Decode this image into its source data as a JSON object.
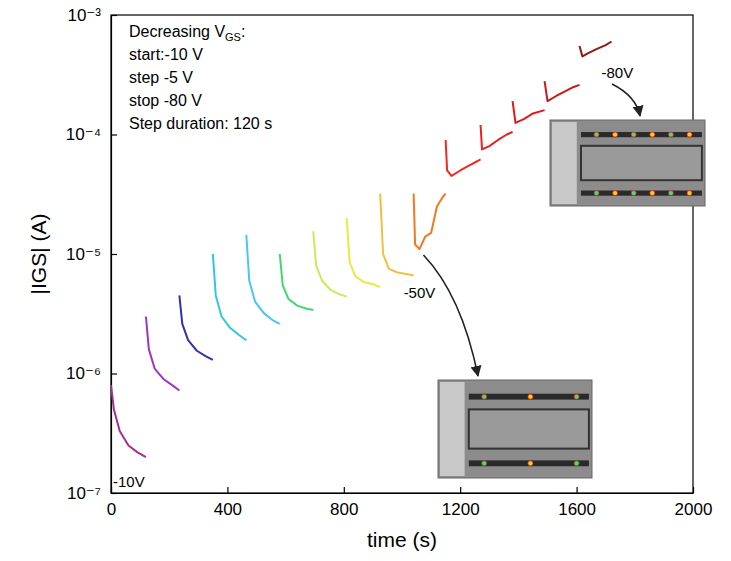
{
  "chart_data": {
    "type": "line",
    "x_label": "time (s)",
    "y_label": "|IGS| (A)",
    "log": "y",
    "grid": false,
    "tick_labels": true,
    "xlim": [
      0,
      2000
    ],
    "xticks": [
      0,
      400,
      800,
      1200,
      1600,
      2000
    ],
    "ylim": [
      1e-07,
      0.001
    ],
    "yticks": [
      {
        "value": 1e-07,
        "label": "10⁻⁷"
      },
      {
        "value": 1e-06,
        "label": "10⁻⁶"
      },
      {
        "value": 1e-05,
        "label": "10⁻⁵"
      },
      {
        "value": 0.0001,
        "label": "10⁻⁴"
      },
      {
        "value": 0.001,
        "label": "10⁻³"
      }
    ],
    "annotations": [
      "Decreasing VGS:",
      "start:-10 V",
      "step -5 V",
      "stop -80 V",
      "Step duration: 120 s"
    ],
    "voltage_labels": [
      "-10V",
      "-50V",
      "-80V"
    ],
    "series": [
      {
        "color": "#a3308f",
        "x": [
          0,
          10,
          30,
          60,
          90,
          120
        ],
        "values": [
          8e-07,
          5e-07,
          3.3e-07,
          2.5e-07,
          2.2e-07,
          2e-07
        ]
      },
      {
        "color": "#a033c8",
        "x": [
          120,
          130,
          150,
          180,
          210,
          235
        ],
        "values": [
          3e-06,
          1.6e-06,
          1.1e-06,
          9e-07,
          8e-07,
          7.2e-07
        ]
      },
      {
        "color": "#3232b0",
        "x": [
          235,
          245,
          265,
          295,
          325,
          350
        ],
        "values": [
          4.5e-06,
          2.6e-06,
          1.9e-06,
          1.55e-06,
          1.4e-06,
          1.3e-06
        ]
      },
      {
        "color": "#30c8e0",
        "x": [
          350,
          360,
          380,
          410,
          440,
          465
        ],
        "values": [
          1e-05,
          4.5e-06,
          3e-06,
          2.4e-06,
          2.1e-06,
          1.9e-06
        ]
      },
      {
        "color": "#48c8f0",
        "x": [
          465,
          475,
          495,
          525,
          555,
          580
        ],
        "values": [
          1.45e-05,
          6e-06,
          4e-06,
          3.2e-06,
          2.8e-06,
          2.6e-06
        ]
      },
      {
        "color": "#40d870",
        "x": [
          580,
          590,
          610,
          640,
          670,
          695
        ],
        "values": [
          1e-05,
          5.5e-06,
          4.2e-06,
          3.7e-06,
          3.5e-06,
          3.4e-06
        ]
      },
      {
        "color": "#c8ec58",
        "x": [
          695,
          705,
          725,
          755,
          785,
          810
        ],
        "values": [
          1.55e-05,
          8e-06,
          6e-06,
          5e-06,
          4.6e-06,
          4.4e-06
        ]
      },
      {
        "color": "#ece840",
        "x": [
          810,
          820,
          840,
          870,
          900,
          925
        ],
        "values": [
          2e-05,
          8.5e-06,
          6.5e-06,
          5.8e-06,
          5.6e-06,
          5.3e-06
        ]
      },
      {
        "color": "#f0c040",
        "x": [
          925,
          935,
          955,
          985,
          1015,
          1040
        ],
        "values": [
          3.2e-05,
          1e-05,
          7.5e-06,
          7e-06,
          6.8e-06,
          6.6e-06
        ]
      },
      {
        "color": "#f07a20",
        "x": [
          1040,
          1045,
          1060,
          1080,
          1100,
          1120,
          1140,
          1150
        ],
        "values": [
          3.2e-05,
          1.2e-05,
          1.1e-05,
          1.4e-05,
          1.5e-05,
          2.5e-05,
          3e-05,
          3.2e-05
        ]
      },
      {
        "color": "#f02a20",
        "x": [
          1150,
          1155,
          1170,
          1200,
          1230,
          1260,
          1270
        ],
        "values": [
          9e-05,
          5e-05,
          4.5e-05,
          5e-05,
          5.5e-05,
          6e-05,
          6.2e-05
        ]
      },
      {
        "color": "#e82020",
        "x": [
          1270,
          1275,
          1300,
          1330,
          1360,
          1380
        ],
        "values": [
          0.00012,
          7.5e-05,
          8e-05,
          9e-05,
          0.0001,
          0.000105
        ]
      },
      {
        "color": "#dc1c1c",
        "x": [
          1380,
          1390,
          1420,
          1450,
          1490
        ],
        "values": [
          0.00019,
          0.000125,
          0.000135,
          0.00015,
          0.00016
        ]
      },
      {
        "color": "#c81a1a",
        "x": [
          1490,
          1500,
          1530,
          1560,
          1590,
          1610
        ],
        "values": [
          0.00028,
          0.00019,
          0.00021,
          0.00023,
          0.00025,
          0.00026
        ]
      },
      {
        "color": "#901818",
        "x": [
          1610,
          1620,
          1640,
          1670,
          1700,
          1720
        ],
        "values": [
          0.00055,
          0.00045,
          0.00048,
          0.00052,
          0.00056,
          0.0006
        ]
      }
    ]
  }
}
